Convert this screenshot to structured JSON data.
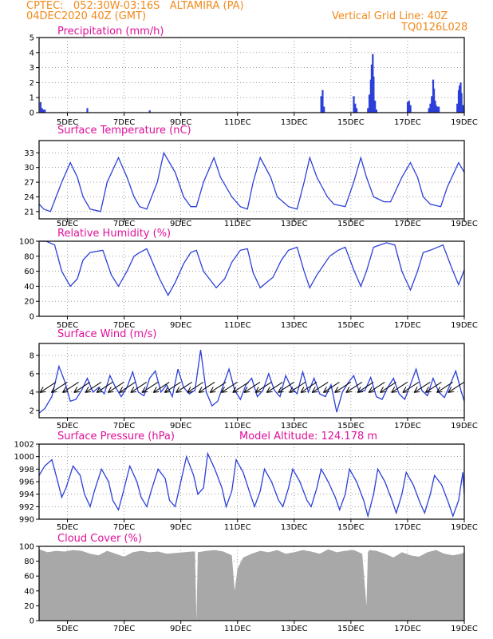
{
  "header": {
    "line1": "CPTEC:   052:30W-03:16S   ALTAMIRA (PA)",
    "line2": "04DEC2020 40Z (GMT)",
    "grid_note": "Vertical Grid Line: 40Z",
    "code": "TQ0126L028"
  },
  "colors": {
    "header": "#f08a1c",
    "title": "#e0109a",
    "line": "#2c3fd8",
    "bar": "#2c3fd8",
    "cloud": "#a8a8a8",
    "wind_arrow": "#000000"
  },
  "chart_data": [
    {
      "id": "precip",
      "type": "bar",
      "title": "Precipitation (mm/h)",
      "ylim": [
        0,
        5
      ],
      "yticks": [
        0,
        1,
        2,
        3,
        4,
        5
      ],
      "xlim": [
        4.0,
        19.0
      ],
      "grid": true,
      "x_ticks": [
        5,
        7,
        9,
        11,
        13,
        15,
        17,
        19
      ],
      "x_labels": [
        "5DEC",
        "7DEC",
        "9DEC",
        "11DEC",
        "13DEC",
        "15DEC",
        "17DEC",
        "19DEC"
      ],
      "bars": [
        {
          "x": 4.05,
          "v": 0.7
        },
        {
          "x": 4.1,
          "v": 0.3
        },
        {
          "x": 4.15,
          "v": 0.2
        },
        {
          "x": 4.2,
          "v": 0.2
        },
        {
          "x": 5.7,
          "v": 0.3
        },
        {
          "x": 7.9,
          "v": 0.15
        },
        {
          "x": 13.95,
          "v": 1.1
        },
        {
          "x": 14.0,
          "v": 1.5
        },
        {
          "x": 14.05,
          "v": 0.4
        },
        {
          "x": 15.1,
          "v": 1.1
        },
        {
          "x": 15.15,
          "v": 0.6
        },
        {
          "x": 15.2,
          "v": 0.3
        },
        {
          "x": 15.6,
          "v": 0.3
        },
        {
          "x": 15.65,
          "v": 1.2
        },
        {
          "x": 15.7,
          "v": 2.2
        },
        {
          "x": 15.73,
          "v": 3.2
        },
        {
          "x": 15.77,
          "v": 3.9
        },
        {
          "x": 15.8,
          "v": 2.4
        },
        {
          "x": 15.85,
          "v": 0.8
        },
        {
          "x": 15.9,
          "v": 0.2
        },
        {
          "x": 17.0,
          "v": 0.7
        },
        {
          "x": 17.05,
          "v": 0.8
        },
        {
          "x": 17.1,
          "v": 0.5
        },
        {
          "x": 17.75,
          "v": 0.3
        },
        {
          "x": 17.8,
          "v": 0.6
        },
        {
          "x": 17.85,
          "v": 1.1
        },
        {
          "x": 17.9,
          "v": 2.2
        },
        {
          "x": 17.93,
          "v": 1.6
        },
        {
          "x": 17.97,
          "v": 0.8
        },
        {
          "x": 18.0,
          "v": 0.5
        },
        {
          "x": 18.05,
          "v": 0.4
        },
        {
          "x": 18.1,
          "v": 0.4
        },
        {
          "x": 18.75,
          "v": 0.6
        },
        {
          "x": 18.8,
          "v": 1.5
        },
        {
          "x": 18.83,
          "v": 1.8
        },
        {
          "x": 18.87,
          "v": 2.0
        },
        {
          "x": 18.9,
          "v": 1.3
        },
        {
          "x": 18.95,
          "v": 0.5
        }
      ]
    },
    {
      "id": "temp",
      "type": "line",
      "title": "Surface Temperature (nC)",
      "ylim": [
        19.5,
        35.5
      ],
      "yticks": [
        21,
        24,
        27,
        30,
        33
      ],
      "xlim": [
        4.0,
        19.0
      ],
      "grid": true,
      "x_ticks": [
        5,
        7,
        9,
        11,
        13,
        15,
        17,
        19
      ],
      "x_labels": [
        "5DEC",
        "7DEC",
        "9DEC",
        "11DEC",
        "13DEC",
        "15DEC",
        "17DEC",
        "19DEC"
      ],
      "x": [
        4.0,
        4.17,
        4.4,
        4.8,
        5.1,
        5.35,
        5.55,
        5.8,
        6.17,
        6.4,
        6.8,
        7.1,
        7.35,
        7.55,
        7.8,
        8.17,
        8.4,
        8.8,
        9.1,
        9.35,
        9.55,
        9.8,
        10.17,
        10.4,
        10.8,
        11.1,
        11.35,
        11.55,
        11.8,
        12.17,
        12.4,
        12.8,
        13.1,
        13.35,
        13.55,
        13.8,
        14.17,
        14.4,
        14.8,
        15.1,
        15.35,
        15.55,
        15.8,
        16.17,
        16.4,
        16.8,
        17.1,
        17.35,
        17.55,
        17.8,
        18.17,
        18.4,
        18.8,
        19.0
      ],
      "y": [
        22.5,
        21.5,
        21.0,
        27.0,
        31.0,
        28.0,
        24.0,
        21.5,
        21.0,
        27.0,
        32.0,
        28.0,
        24.0,
        22.0,
        21.5,
        27.0,
        33.0,
        29.0,
        24.0,
        22.0,
        22.0,
        27.0,
        32.0,
        28.0,
        24.0,
        22.0,
        21.5,
        27.0,
        32.0,
        28.0,
        24.0,
        22.0,
        21.5,
        27.0,
        32.0,
        28.0,
        24.0,
        22.5,
        22.0,
        27.0,
        32.0,
        28.0,
        24.0,
        23.0,
        23.0,
        28.0,
        31.0,
        28.0,
        24.0,
        22.5,
        22.0,
        26.0,
        31.0,
        29.0
      ]
    },
    {
      "id": "rh",
      "type": "line",
      "title": "Relative Humidity (%)",
      "ylim": [
        0,
        100
      ],
      "yticks": [
        0,
        20,
        40,
        60,
        80,
        100
      ],
      "xlim": [
        4.0,
        19.0
      ],
      "grid": true,
      "x_ticks": [
        5,
        7,
        9,
        11,
        13,
        15,
        17,
        19
      ],
      "x_labels": [
        "5DEC",
        "7DEC",
        "9DEC",
        "11DEC",
        "13DEC",
        "15DEC",
        "17DEC",
        "19DEC"
      ],
      "x": [
        4.0,
        4.25,
        4.55,
        4.8,
        5.1,
        5.35,
        5.55,
        5.8,
        6.25,
        6.55,
        6.8,
        7.1,
        7.35,
        7.55,
        7.8,
        8.25,
        8.55,
        8.8,
        9.1,
        9.35,
        9.55,
        9.8,
        10.25,
        10.55,
        10.8,
        11.1,
        11.35,
        11.55,
        11.8,
        12.25,
        12.55,
        12.8,
        13.1,
        13.35,
        13.55,
        13.8,
        14.25,
        14.55,
        14.8,
        15.1,
        15.35,
        15.55,
        15.8,
        16.25,
        16.55,
        16.8,
        17.1,
        17.35,
        17.55,
        17.8,
        18.25,
        18.55,
        18.8,
        19.0
      ],
      "y": [
        100,
        100,
        95,
        60,
        40,
        50,
        75,
        85,
        88,
        55,
        40,
        60,
        80,
        85,
        90,
        50,
        28,
        45,
        70,
        85,
        88,
        60,
        38,
        50,
        72,
        88,
        90,
        58,
        38,
        52,
        75,
        88,
        92,
        60,
        38,
        55,
        80,
        88,
        92,
        62,
        40,
        60,
        92,
        98,
        95,
        60,
        35,
        60,
        85,
        88,
        95,
        65,
        42,
        62
      ]
    },
    {
      "id": "wind",
      "type": "line",
      "title": "Surface Wind (m/s)",
      "ylim": [
        1.2,
        9.3
      ],
      "yticks": [
        2,
        4,
        6,
        8
      ],
      "xlim": [
        4.0,
        19.0
      ],
      "grid": true,
      "x_ticks": [
        5,
        7,
        9,
        11,
        13,
        15,
        17,
        19
      ],
      "x_labels": [
        "5DEC",
        "7DEC",
        "9DEC",
        "11DEC",
        "13DEC",
        "15DEC",
        "17DEC",
        "19DEC"
      ],
      "x": [
        4.0,
        4.2,
        4.45,
        4.7,
        4.9,
        5.1,
        5.3,
        5.5,
        5.7,
        5.9,
        6.1,
        6.3,
        6.5,
        6.7,
        6.9,
        7.1,
        7.3,
        7.5,
        7.7,
        7.9,
        8.1,
        8.3,
        8.5,
        8.7,
        8.9,
        9.1,
        9.3,
        9.5,
        9.7,
        9.9,
        10.1,
        10.3,
        10.5,
        10.7,
        10.9,
        11.1,
        11.3,
        11.5,
        11.7,
        11.9,
        12.1,
        12.3,
        12.5,
        12.7,
        12.9,
        13.1,
        13.3,
        13.5,
        13.7,
        13.9,
        14.1,
        14.3,
        14.5,
        14.7,
        14.9,
        15.1,
        15.3,
        15.5,
        15.7,
        15.9,
        16.1,
        16.3,
        16.5,
        16.7,
        16.9,
        17.1,
        17.3,
        17.5,
        17.7,
        17.9,
        18.1,
        18.3,
        18.5,
        18.7,
        18.9,
        19.0
      ],
      "y": [
        1.7,
        2.2,
        3.5,
        6.8,
        5.2,
        3.0,
        3.2,
        4.2,
        5.5,
        4.0,
        4.5,
        3.8,
        5.8,
        4.5,
        3.5,
        4.5,
        6.2,
        4.0,
        3.6,
        5.5,
        6.3,
        4.0,
        4.8,
        3.5,
        6.5,
        4.5,
        3.8,
        4.2,
        8.6,
        4.0,
        2.5,
        3.0,
        4.8,
        6.5,
        4.2,
        3.2,
        4.8,
        5.5,
        3.5,
        4.2,
        6.0,
        4.2,
        3.5,
        5.8,
        4.5,
        3.8,
        6.2,
        4.0,
        5.5,
        3.8,
        3.5,
        4.8,
        1.8,
        4.0,
        5.0,
        5.8,
        4.0,
        4.2,
        5.6,
        3.5,
        3.2,
        4.5,
        5.5,
        3.8,
        3.2,
        4.8,
        6.5,
        4.2,
        3.6,
        5.5,
        4.0,
        3.4,
        4.8,
        6.3,
        4.0,
        3.0
      ],
      "arrow_y": 4.3,
      "arrows_x": [
        4.2,
        4.6,
        5.0,
        5.4,
        5.8,
        6.2,
        6.6,
        7.0,
        7.4,
        7.8,
        8.2,
        8.6,
        9.0,
        9.4,
        9.8,
        10.2,
        10.6,
        11.0,
        11.4,
        11.8,
        12.2,
        12.6,
        13.0,
        13.4,
        13.8,
        14.2,
        14.6,
        15.0,
        15.4,
        15.8,
        16.2,
        16.6,
        17.0,
        17.4,
        17.8,
        18.2,
        18.6
      ]
    },
    {
      "id": "pressure",
      "type": "line",
      "title": "Surface Pressure (hPa)",
      "subtitle": "Model Altitude: 124.178 m",
      "ylim": [
        990,
        1002
      ],
      "yticks": [
        990,
        992,
        994,
        996,
        998,
        1000,
        1002
      ],
      "xlim": [
        4.0,
        19.0
      ],
      "grid": true,
      "x_ticks": [
        5,
        7,
        9,
        11,
        13,
        15,
        17,
        19
      ],
      "x_labels": [
        "5DEC",
        "7DEC",
        "9DEC",
        "11DEC",
        "13DEC",
        "15DEC",
        "17DEC",
        "19DEC"
      ],
      "x": [
        4.0,
        4.2,
        4.45,
        4.6,
        4.8,
        4.95,
        5.2,
        5.45,
        5.6,
        5.8,
        5.95,
        6.2,
        6.45,
        6.6,
        6.8,
        6.95,
        7.2,
        7.45,
        7.6,
        7.8,
        7.95,
        8.2,
        8.45,
        8.6,
        8.8,
        8.95,
        9.2,
        9.45,
        9.6,
        9.8,
        9.95,
        10.2,
        10.45,
        10.6,
        10.8,
        10.95,
        11.2,
        11.45,
        11.6,
        11.8,
        11.95,
        12.2,
        12.45,
        12.6,
        12.8,
        12.95,
        13.2,
        13.45,
        13.6,
        13.8,
        13.95,
        14.2,
        14.45,
        14.6,
        14.8,
        14.95,
        15.2,
        15.45,
        15.6,
        15.8,
        15.95,
        16.2,
        16.45,
        16.6,
        16.8,
        16.95,
        17.2,
        17.45,
        17.6,
        17.8,
        17.95,
        18.2,
        18.45,
        18.6,
        18.8,
        18.95,
        19.0
      ],
      "y": [
        997,
        998.5,
        999.5,
        997,
        993.5,
        995,
        998.5,
        997,
        994,
        992,
        994.5,
        998,
        996,
        993,
        991.5,
        994,
        998.5,
        996,
        993.5,
        992,
        994.5,
        998,
        996.5,
        993,
        992,
        995,
        1000,
        997,
        994,
        995,
        1000.5,
        998,
        995,
        992,
        994.5,
        999.5,
        997.5,
        994,
        992,
        994.5,
        998,
        996,
        993,
        992,
        995,
        998,
        996,
        993,
        992,
        995,
        998,
        996,
        993.5,
        991.5,
        994,
        998,
        996,
        993,
        990.5,
        994,
        998,
        996,
        993,
        991,
        994,
        997.5,
        995.5,
        992.5,
        991,
        994,
        997,
        995.5,
        992.5,
        990.5,
        993,
        997.5,
        994
      ]
    },
    {
      "id": "cloud",
      "type": "area",
      "title": "Cloud Cover (%)",
      "ylim": [
        0,
        100
      ],
      "yticks": [
        0,
        20,
        40,
        60,
        80,
        100
      ],
      "xlim": [
        4.0,
        19.0
      ],
      "grid": true,
      "x_ticks": [
        5,
        7,
        9,
        11,
        13,
        15,
        17,
        19
      ],
      "x_labels": [
        "5DEC",
        "7DEC",
        "9DEC",
        "11DEC",
        "13DEC",
        "15DEC",
        "17DEC",
        "19DEC"
      ],
      "x": [
        4.0,
        4.3,
        4.6,
        4.9,
        5.2,
        5.5,
        5.8,
        6.1,
        6.4,
        6.7,
        7.0,
        7.3,
        7.6,
        7.9,
        8.2,
        8.5,
        8.8,
        9.1,
        9.4,
        9.5,
        9.55,
        9.6,
        9.9,
        10.2,
        10.5,
        10.8,
        10.9,
        11.0,
        11.2,
        11.5,
        11.8,
        12.1,
        12.4,
        12.7,
        13.0,
        13.3,
        13.6,
        13.9,
        14.2,
        14.5,
        14.8,
        15.1,
        15.4,
        15.55,
        15.6,
        15.65,
        15.9,
        16.2,
        16.5,
        16.8,
        17.1,
        17.4,
        17.7,
        18.0,
        18.3,
        18.6,
        18.9,
        19.0
      ],
      "y": [
        96,
        92,
        94,
        93,
        95,
        94,
        90,
        88,
        94,
        90,
        86,
        92,
        94,
        92,
        93,
        90,
        91,
        92,
        93,
        93,
        0,
        92,
        94,
        95,
        93,
        88,
        40,
        70,
        85,
        90,
        94,
        92,
        95,
        90,
        92,
        95,
        93,
        90,
        96,
        92,
        94,
        95,
        90,
        20,
        92,
        95,
        94,
        90,
        85,
        92,
        88,
        86,
        92,
        95,
        90,
        88,
        90,
        92
      ]
    }
  ]
}
